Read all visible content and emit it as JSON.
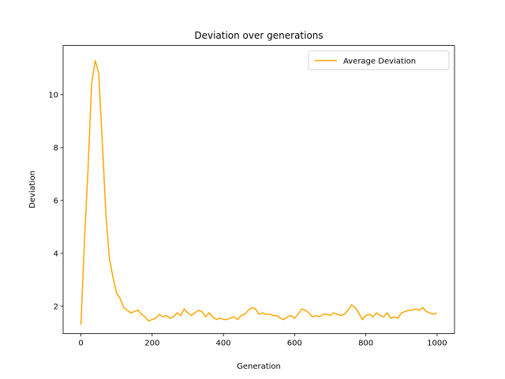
{
  "chart_data": {
    "type": "line",
    "title": "Deviation over generations",
    "xlabel": "Generation",
    "ylabel": "Deviation",
    "x": [
      0,
      10,
      20,
      30,
      40,
      50,
      60,
      70,
      80,
      90,
      100,
      110,
      120,
      130,
      140,
      150,
      160,
      170,
      180,
      190,
      200,
      210,
      220,
      230,
      240,
      250,
      260,
      270,
      280,
      290,
      300,
      310,
      320,
      330,
      340,
      350,
      360,
      370,
      380,
      390,
      400,
      410,
      420,
      430,
      440,
      450,
      460,
      470,
      480,
      490,
      500,
      510,
      520,
      530,
      540,
      550,
      560,
      570,
      580,
      590,
      600,
      610,
      620,
      630,
      640,
      650,
      660,
      670,
      680,
      690,
      700,
      710,
      720,
      730,
      740,
      750,
      760,
      770,
      780,
      790,
      800,
      810,
      820,
      830,
      840,
      850,
      860,
      870,
      880,
      890,
      900,
      910,
      920,
      930,
      940,
      950,
      960,
      970,
      980,
      990,
      1000
    ],
    "series": [
      {
        "name": "Average Deviation",
        "color": "#ffa500",
        "values": [
          1.3,
          4.5,
          7.2,
          10.4,
          11.3,
          10.8,
          8.2,
          5.5,
          3.8,
          3.1,
          2.5,
          2.3,
          1.95,
          1.85,
          1.75,
          1.8,
          1.85,
          1.7,
          1.6,
          1.45,
          1.5,
          1.55,
          1.7,
          1.6,
          1.65,
          1.55,
          1.6,
          1.75,
          1.65,
          1.9,
          1.75,
          1.65,
          1.75,
          1.85,
          1.8,
          1.6,
          1.75,
          1.6,
          1.5,
          1.55,
          1.5,
          1.5,
          1.55,
          1.6,
          1.5,
          1.65,
          1.7,
          1.85,
          1.95,
          1.9,
          1.7,
          1.75,
          1.7,
          1.7,
          1.65,
          1.65,
          1.55,
          1.5,
          1.6,
          1.65,
          1.55,
          1.7,
          1.9,
          1.85,
          1.75,
          1.6,
          1.65,
          1.6,
          1.7,
          1.7,
          1.65,
          1.75,
          1.7,
          1.65,
          1.7,
          1.85,
          2.05,
          1.95,
          1.75,
          1.5,
          1.65,
          1.7,
          1.6,
          1.75,
          1.65,
          1.6,
          1.75,
          1.55,
          1.6,
          1.55,
          1.75,
          1.8,
          1.85,
          1.85,
          1.9,
          1.85,
          1.95,
          1.8,
          1.75,
          1.7,
          1.75
        ]
      }
    ],
    "xlim": [
      -50,
      1049
    ],
    "ylim": [
      0.97,
      11.86
    ],
    "xticks": [
      0,
      200,
      400,
      600,
      800,
      1000
    ],
    "yticks": [
      2,
      4,
      6,
      8,
      10
    ],
    "legend": "upper right"
  }
}
